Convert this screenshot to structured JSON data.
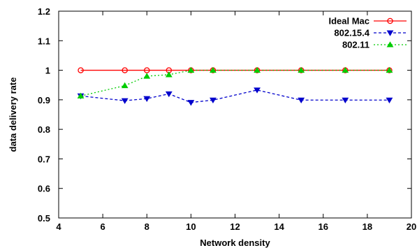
{
  "chart_data": {
    "type": "line",
    "xlabel": "Network density",
    "ylabel": "data delivery rate",
    "xlim": [
      4,
      20
    ],
    "ylim": [
      0.5,
      1.2
    ],
    "xticks": [
      "4",
      "6",
      "8",
      "10",
      "12",
      "14",
      "16",
      "18",
      "20"
    ],
    "yticks": [
      "0.5",
      "0.6",
      "0.7",
      "0.8",
      "0.9",
      "1",
      "1.1",
      "1.2"
    ],
    "grid": false,
    "legend_position": "top-right",
    "series": [
      {
        "name": "Ideal Mac",
        "color": "#ff0000",
        "marker": "circle",
        "dash": "solid",
        "x": [
          5,
          7,
          8,
          9,
          10,
          11,
          13,
          15,
          17,
          19
        ],
        "y": [
          1,
          1,
          1,
          1,
          1,
          1,
          1,
          1,
          1,
          1
        ]
      },
      {
        "name": "802.15.4",
        "color": "#0000cc",
        "marker": "triangle-down",
        "dash": "dashed",
        "x": [
          5,
          7,
          8,
          9,
          10,
          11,
          13,
          15,
          17,
          19
        ],
        "y": [
          0.913,
          0.897,
          0.904,
          0.92,
          0.891,
          0.899,
          0.933,
          0.899,
          0.899,
          0.899
        ]
      },
      {
        "name": "802.11",
        "color": "#00cc00",
        "marker": "triangle-up",
        "dash": "dotted",
        "x": [
          5,
          7,
          8,
          9,
          10,
          11,
          13,
          15,
          17,
          19
        ],
        "y": [
          0.913,
          0.948,
          0.98,
          0.985,
          1,
          1,
          1,
          1,
          1,
          1
        ]
      }
    ]
  }
}
